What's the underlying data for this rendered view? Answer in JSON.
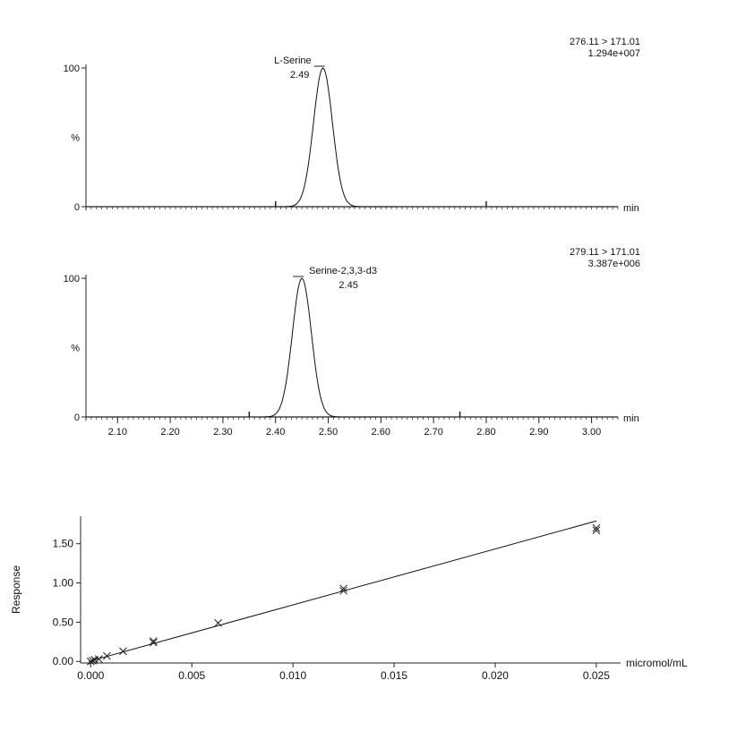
{
  "chart_data": [
    {
      "type": "line",
      "subtype": "chromatogram",
      "trace_label": "276.11 > 171.01",
      "intensity_label": "1.294e+007",
      "peak_name": "L-Serine",
      "peak_rt_label": "2.49",
      "peak_rt": 2.49,
      "peak_sigma": 0.018,
      "peak_start": 2.39,
      "peak_end": 2.63,
      "baseline_end": 2.63,
      "xlabel": "min",
      "ylabel": "%",
      "xlim": [
        2.04,
        3.05
      ],
      "ylim": [
        0,
        100
      ],
      "ytick_labels": [
        "0",
        "%",
        "100"
      ],
      "major_ticks": [
        2.4,
        2.8
      ]
    },
    {
      "type": "line",
      "subtype": "chromatogram",
      "trace_label": "279.11 > 171.01",
      "intensity_label": "3.387e+006",
      "peak_name": "Serine-2,3,3-d3",
      "peak_rt_label": "2.45",
      "peak_rt": 2.45,
      "peak_sigma": 0.018,
      "peak_start": 2.37,
      "peak_end": 2.59,
      "baseline_end": 2.59,
      "xlabel": "min",
      "ylabel": "%",
      "xlim": [
        2.04,
        3.05
      ],
      "ylim": [
        0,
        100
      ],
      "ytick_labels": [
        "0",
        "%",
        "100"
      ],
      "xtick_labels": [
        "2.10",
        "2.20",
        "2.30",
        "2.40",
        "2.50",
        "2.60",
        "2.70",
        "2.80",
        "2.90",
        "3.00"
      ],
      "xtick_values": [
        2.1,
        2.2,
        2.3,
        2.4,
        2.5,
        2.6,
        2.7,
        2.8,
        2.9,
        3.0
      ],
      "major_ticks": [
        2.35,
        2.75
      ]
    },
    {
      "type": "scatter",
      "subtype": "calibration_curve",
      "xlabel": "micromol/mL",
      "ylabel": "Response",
      "xlim": [
        -0.0005,
        0.0262
      ],
      "ylim": [
        -0.02,
        1.85
      ],
      "xtick_labels": [
        "0.000",
        "0.005",
        "0.010",
        "0.015",
        "0.020",
        "0.025"
      ],
      "xtick_values": [
        0.0,
        0.005,
        0.01,
        0.015,
        0.02,
        0.025
      ],
      "ytick_labels": [
        "0.00",
        "0.50",
        "1.00",
        "1.50"
      ],
      "ytick_values": [
        0.0,
        0.5,
        1.0,
        1.5
      ],
      "fit_line": [
        [
          -0.0001,
          0.0
        ],
        [
          0.025,
          1.79
        ]
      ],
      "points": [
        [
          0.0,
          0.0
        ],
        [
          0.0001,
          0.01
        ],
        [
          0.0002,
          0.02
        ],
        [
          0.0004,
          0.03
        ],
        [
          0.0008,
          0.07
        ],
        [
          0.0016,
          0.13
        ],
        [
          0.0031,
          0.24
        ],
        [
          0.0031,
          0.26
        ],
        [
          0.0063,
          0.49
        ],
        [
          0.0125,
          0.9
        ],
        [
          0.0125,
          0.93
        ],
        [
          0.025,
          1.67
        ],
        [
          0.025,
          1.7
        ]
      ]
    }
  ]
}
